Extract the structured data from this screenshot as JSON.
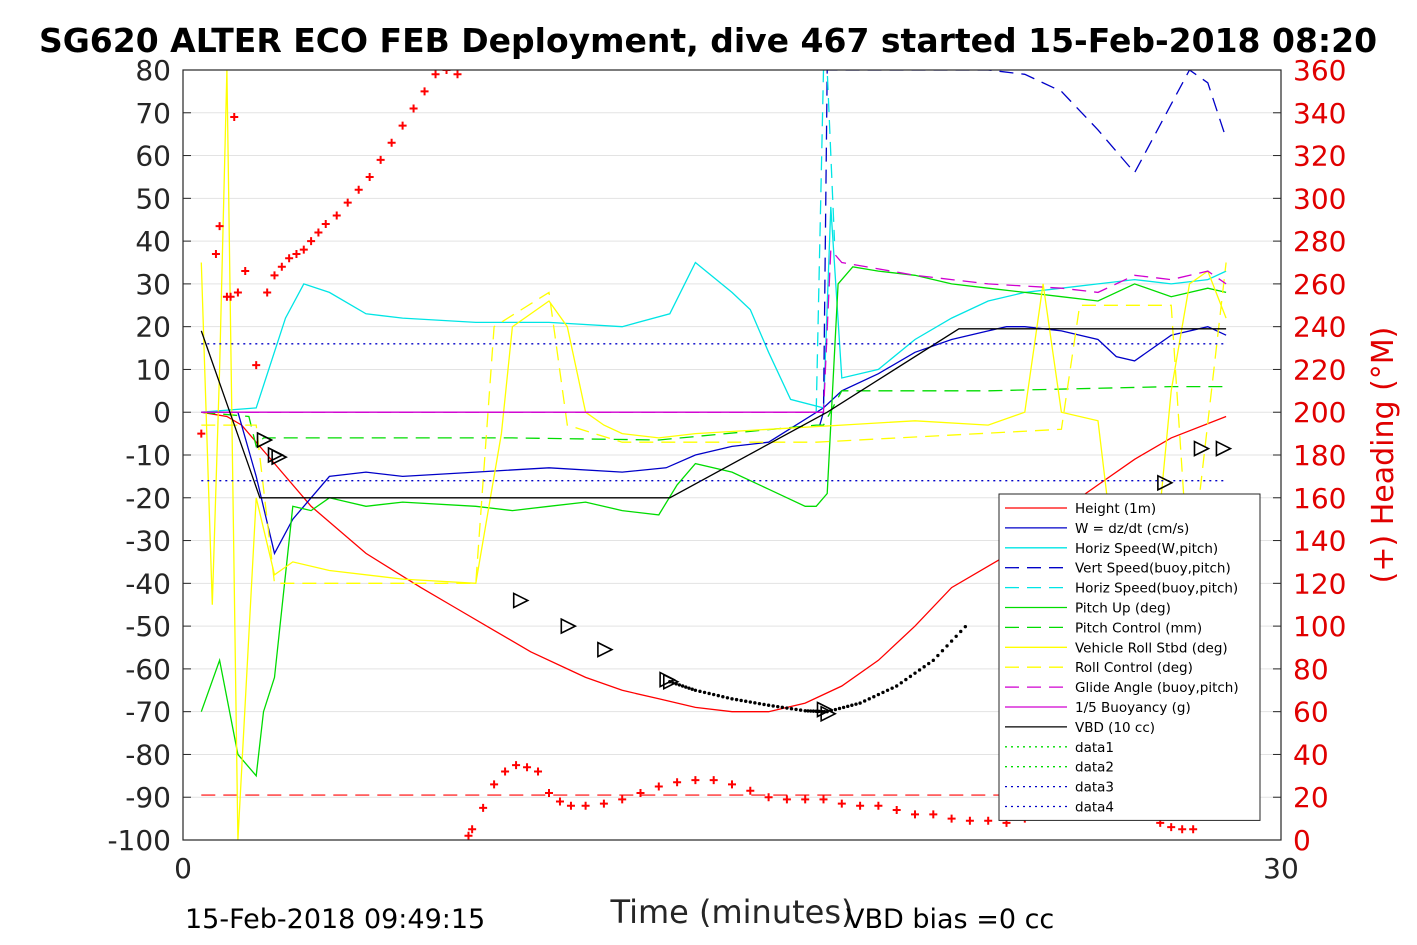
{
  "title": "SG620 ALTER ECO FEB Deployment, dive 467 started 15-Feb-2018 08:20",
  "footer_left": "15-Feb-2018 09:49:15",
  "footer_right": "VBD bias =0 cc",
  "colors": {
    "Height (1m)": "#ff0000",
    "W = dz/dt (cm/s)": "#0000c8",
    "Horiz Speed(W,pitch)": "#00e5e5",
    "Vert Speed(buoy,pitch)": "#0000c8",
    "Horiz Speed(buoy,pitch)": "#00e5e5",
    "Pitch Up (deg)": "#00dc00",
    "Pitch Control (mm)": "#00dc00",
    "Vehicle Roll Stbd (deg)": "#ffff00",
    "Roll Control (deg)": "#ffff00",
    "Glide Angle (buoy,pitch)": "#d000d0",
    "1/5 Buoyancy (g)": "#d000d0",
    "VBD (10 cc)": "#000000",
    "data1": "#00dc00",
    "data2": "#00dc00",
    "data3": "#0000c8",
    "data4": "#0000c8",
    "heading": "#ff0000"
  },
  "chart_data": {
    "type": "line",
    "xlabel": "Time (minutes)",
    "ylabel": "",
    "ylabel_right": "(+) Heading (°M)",
    "xlim": [
      0,
      30
    ],
    "ylim": [
      -100,
      80
    ],
    "ylim_right": [
      0,
      360
    ],
    "xticks": [
      "0",
      "30"
    ],
    "yticks_left": [
      "80",
      "70",
      "60",
      "50",
      "40",
      "30",
      "20",
      "10",
      "0",
      "-10",
      "-20",
      "-30",
      "-40",
      "-50",
      "-60",
      "-70",
      "-80",
      "-90",
      "-100"
    ],
    "yticks_right": [
      "360",
      "340",
      "320",
      "300",
      "280",
      "260",
      "240",
      "220",
      "200",
      "180",
      "160",
      "140",
      "120",
      "100",
      "80",
      "60",
      "40",
      "20",
      "0"
    ],
    "grid": "y",
    "legend_position": "bottom-right",
    "series": [
      {
        "name": "Height (1m)",
        "style": "solid",
        "x": [
          0.5,
          1.2,
          1.6,
          2.3,
          3.5,
          5,
          6.5,
          7.5,
          8.5,
          9.5,
          10.5,
          11,
          12,
          13,
          14,
          15,
          16,
          17,
          18,
          19,
          20,
          21,
          22,
          23,
          24,
          25,
          26,
          27,
          28.5
        ],
        "y": [
          0,
          -1,
          -3,
          -10,
          -22,
          -33,
          -41,
          -46,
          -51,
          -56,
          -60,
          -62,
          -65,
          -67,
          -69,
          -70,
          -70,
          -68,
          -64,
          -58,
          -50,
          -41,
          -36,
          -31,
          -23,
          -17,
          -11,
          -6,
          -1
        ]
      },
      {
        "name": "W = dz/dt (cm/s)",
        "style": "solid",
        "x": [
          0.5,
          1.5,
          2,
          2.5,
          3,
          4,
          5,
          6,
          8,
          10,
          12,
          13.2,
          14,
          15,
          16,
          17.5,
          18,
          19,
          20,
          21,
          22,
          22.5,
          23,
          24,
          25,
          25.5,
          26,
          27,
          28,
          28.5
        ],
        "y": [
          0,
          0,
          -15,
          -33,
          -25,
          -15,
          -14,
          -15,
          -14,
          -13,
          -14,
          -13,
          -10,
          -8,
          -7,
          1,
          5,
          9,
          14,
          17,
          19,
          20,
          20,
          19,
          17,
          13,
          12,
          18,
          20,
          18
        ]
      },
      {
        "name": "Horiz Speed(W,pitch)",
        "style": "solid",
        "x": [
          0.5,
          2,
          2.8,
          3.3,
          4,
          5,
          6,
          8,
          10,
          12,
          13.3,
          14,
          15,
          15.5,
          16,
          16.6,
          17.5,
          17.7,
          18,
          19,
          20,
          21,
          22,
          23,
          24,
          25,
          26,
          27,
          28,
          28.5
        ],
        "y": [
          0,
          1,
          22,
          30,
          28,
          23,
          22,
          21,
          21,
          20,
          23,
          35,
          28,
          24,
          14,
          3,
          1,
          48,
          8,
          10,
          17,
          22,
          26,
          28,
          29,
          30,
          31,
          30,
          31,
          33
        ]
      },
      {
        "name": "Vert Speed(buoy,pitch)",
        "style": "dashed",
        "x": [
          17.4,
          17.5,
          17.6,
          22,
          23,
          24,
          25,
          26,
          27,
          27.5,
          28,
          28.5
        ],
        "y": [
          -3,
          0,
          80,
          80,
          79,
          75,
          66,
          56,
          72,
          80,
          77,
          64
        ]
      },
      {
        "name": "Horiz Speed(buoy,pitch)",
        "style": "dashed",
        "x": [
          17.3,
          17.5,
          17.6,
          17.8
        ],
        "y": [
          0,
          80,
          80,
          40
        ]
      },
      {
        "name": "Pitch Up (deg)",
        "style": "solid",
        "x": [
          0.5,
          1,
          1.5,
          2,
          2.2,
          2.5,
          3,
          3.5,
          4,
          5,
          6,
          8,
          9,
          10,
          11,
          12,
          13,
          13.5,
          14,
          15,
          16,
          17,
          17.3,
          17.6,
          17.9,
          18.3,
          19,
          20,
          21,
          22,
          23,
          24,
          25,
          26,
          27,
          28,
          28.5
        ],
        "y": [
          -70,
          -58,
          -80,
          -85,
          -70,
          -62,
          -22,
          -23,
          -20,
          -22,
          -21,
          -22,
          -23,
          -22,
          -21,
          -23,
          -24,
          -17,
          -12,
          -14,
          -18,
          -22,
          -22,
          -19,
          30,
          34,
          33,
          32,
          30,
          29,
          28,
          27,
          26,
          30,
          27,
          29,
          28
        ]
      },
      {
        "name": "Pitch Control (mm)",
        "style": "dashed",
        "x": [
          0.5,
          1.8,
          2,
          2.2,
          4,
          9,
          13,
          17.3,
          17.5,
          18,
          22,
          27,
          28.5
        ],
        "y": [
          0,
          -1,
          -8,
          -6,
          -6,
          -6,
          -6.5,
          -3,
          -3,
          5,
          5,
          6,
          6
        ]
      },
      {
        "name": "Vehicle Roll Stbd (deg)",
        "style": "solid",
        "x": [
          0.5,
          0.8,
          1,
          1.2,
          1.5,
          2,
          2.5,
          3,
          4,
          6,
          8,
          8.7,
          9,
          10,
          10.5,
          11,
          11.5,
          12,
          13,
          14,
          16,
          18,
          20,
          22,
          23,
          23.5,
          24,
          25,
          25.5,
          26,
          26.5,
          27,
          27.5,
          28,
          28.5
        ],
        "y": [
          35,
          -45,
          10,
          80,
          -100,
          -20,
          -38,
          -35,
          -37,
          -39,
          -40,
          -5,
          20,
          26,
          20,
          0,
          -3,
          -5,
          -6,
          -5,
          -4,
          -3,
          -2,
          -3,
          0,
          30,
          0,
          -2,
          -38,
          -30,
          -40,
          5,
          30,
          33,
          22
        ]
      },
      {
        "name": "Roll Control (deg)",
        "style": "dashed",
        "x": [
          0.5,
          2,
          2.5,
          8,
          8.5,
          10,
          10.5,
          12,
          17.3,
          24,
          24.5,
          27,
          27.5,
          28.5
        ],
        "y": [
          -3,
          -3,
          -40,
          -40,
          20,
          28,
          -3,
          -7,
          -7,
          -4,
          25,
          25,
          -40,
          35
        ]
      },
      {
        "name": "Glide Angle (buoy,pitch)",
        "style": "dashed",
        "x": [
          0.5,
          17.5,
          17.7,
          18,
          20,
          22,
          24,
          25,
          26,
          27,
          28,
          28.5
        ],
        "y": [
          0,
          0,
          38,
          35,
          32,
          30,
          29,
          28,
          32,
          31,
          33,
          30
        ]
      },
      {
        "name": "1/5 Buoyancy (g)",
        "style": "solid",
        "x": [
          0.5,
          17.5
        ],
        "y": [
          0,
          0
        ]
      },
      {
        "name": "VBD (10 cc)",
        "style": "solid",
        "x": [
          0.5,
          2.1,
          13.3,
          17.6,
          21.2,
          28.5
        ],
        "y": [
          19,
          -20,
          -20,
          0,
          19.5,
          19.5
        ]
      },
      {
        "name": "data1",
        "style": "dotted",
        "x": [],
        "y": []
      },
      {
        "name": "data2",
        "style": "dotted",
        "x": [],
        "y": []
      },
      {
        "name": "data3",
        "style": "dotted",
        "x": [
          0.5,
          28.5
        ],
        "y": [
          16,
          16
        ]
      },
      {
        "name": "data4",
        "style": "dotted",
        "x": [
          0.5,
          28.5
        ],
        "y": [
          -16,
          -16
        ]
      }
    ],
    "reference_lines": [
      {
        "style": "dashed",
        "color": "#ff0000",
        "axis": "left",
        "y": -89.5,
        "x": [
          0.5,
          28.5
        ]
      }
    ],
    "markers": {
      "symbol": "triangle-right",
      "x": [
        2.2,
        2.5,
        2.6,
        9.2,
        10.5,
        11.5,
        13.2,
        13.3,
        17.5,
        17.6,
        23.8,
        24.6,
        25.5,
        26.8,
        27.8,
        28.4
      ],
      "y": [
        -6.5,
        -10,
        -10.5,
        -44,
        -50,
        -55.5,
        -62.5,
        -63,
        -69.5,
        -70.5,
        -35,
        -31,
        -24.5,
        -16.5,
        -8.5,
        -8.5
      ]
    },
    "dense_points": {
      "x": [
        13.3,
        14,
        15,
        16,
        17,
        17.6,
        18.5,
        19.5,
        20.5,
        21.5
      ],
      "y": [
        -63,
        -65,
        -67,
        -68.5,
        -69.8,
        -70,
        -68,
        -64,
        -58,
        -49
      ]
    },
    "heading_right_axis": {
      "name": "(+) Heading (°M)",
      "symbol": "plus",
      "x": [
        0.5,
        0.9,
        1.0,
        1.2,
        1.3,
        1.4,
        1.5,
        1.7,
        2.0,
        2.3,
        2.5,
        2.7,
        2.9,
        3.1,
        3.3,
        3.5,
        3.7,
        3.9,
        4.2,
        4.5,
        4.8,
        5.1,
        5.4,
        5.7,
        6.0,
        6.3,
        6.6,
        6.9,
        7.2,
        7.5,
        7.8,
        7.9,
        8.2,
        8.5,
        8.8,
        9.1,
        9.4,
        9.7,
        10.0,
        10.3,
        10.6,
        11.0,
        11.5,
        12.0,
        12.5,
        13.0,
        13.5,
        14.0,
        14.5,
        15.0,
        15.5,
        16.0,
        16.5,
        17.0,
        17.5,
        18.0,
        18.5,
        19.0,
        19.5,
        20.0,
        20.5,
        21.0,
        21.5,
        22.0,
        22.5,
        23.0,
        23.5,
        24.0,
        24.3,
        24.6,
        24.9,
        25.2,
        25.5,
        25.8,
        26.1,
        26.4,
        26.7,
        27.0,
        27.3,
        27.6,
        27.9,
        28.2,
        28.5
      ],
      "y": [
        190,
        274,
        287,
        254,
        254,
        338,
        256,
        266,
        222,
        256,
        264,
        268,
        272,
        274,
        276,
        280,
        284,
        288,
        292,
        298,
        304,
        310,
        318,
        326,
        334,
        342,
        350,
        358,
        360,
        358,
        2,
        5,
        15,
        26,
        32,
        35,
        34,
        32,
        22,
        18,
        16,
        16,
        17,
        19,
        22,
        25,
        27,
        28,
        28,
        26,
        23,
        20,
        19,
        19,
        19,
        17,
        16,
        16,
        14,
        12,
        12,
        10,
        9,
        9,
        8,
        10,
        18,
        26,
        36,
        40,
        42,
        40,
        34,
        30,
        20,
        12,
        8,
        6,
        5,
        5,
        13,
        20,
        34
      ]
    }
  }
}
